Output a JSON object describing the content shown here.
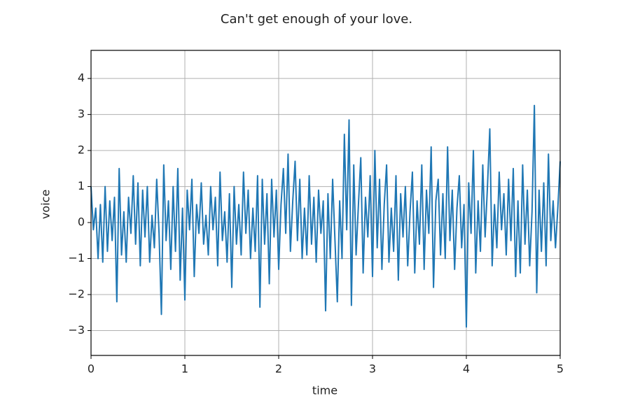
{
  "chart_data": {
    "type": "line",
    "title": "Can't get enough of your love.",
    "x_label": "time",
    "y_label": "voice",
    "xlim": [
      0,
      5
    ],
    "ylim": [
      -3.69,
      4.78
    ],
    "grid": true,
    "xticks": [
      0,
      1,
      2,
      3,
      4,
      5
    ],
    "yticks": [
      {
        "value": -3,
        "label": "−3"
      },
      {
        "value": -2,
        "label": "−2"
      },
      {
        "value": -1,
        "label": "−1"
      },
      0,
      1,
      2,
      3,
      4
    ],
    "x": [
      0,
      0.025,
      0.05,
      0.075,
      0.1,
      0.125,
      0.15,
      0.175,
      0.2,
      0.225,
      0.25,
      0.275,
      0.3,
      0.325,
      0.35,
      0.375,
      0.4,
      0.425,
      0.45,
      0.475,
      0.5,
      0.525,
      0.55,
      0.575,
      0.6,
      0.625,
      0.65,
      0.675,
      0.7,
      0.725,
      0.75,
      0.775,
      0.8,
      0.825,
      0.85,
      0.875,
      0.9,
      0.925,
      0.95,
      0.975,
      1,
      1.025,
      1.05,
      1.075,
      1.1,
      1.125,
      1.15,
      1.175,
      1.2,
      1.225,
      1.25,
      1.275,
      1.3,
      1.325,
      1.35,
      1.375,
      1.4,
      1.425,
      1.45,
      1.475,
      1.5,
      1.525,
      1.55,
      1.575,
      1.6,
      1.625,
      1.65,
      1.675,
      1.7,
      1.725,
      1.75,
      1.775,
      1.8,
      1.825,
      1.85,
      1.875,
      1.9,
      1.925,
      1.95,
      1.975,
      2,
      2.025,
      2.05,
      2.075,
      2.1,
      2.125,
      2.15,
      2.175,
      2.2,
      2.225,
      2.25,
      2.275,
      2.3,
      2.325,
      2.35,
      2.375,
      2.4,
      2.425,
      2.45,
      2.475,
      2.5,
      2.525,
      2.55,
      2.575,
      2.6,
      2.625,
      2.65,
      2.675,
      2.7,
      2.725,
      2.75,
      2.775,
      2.8,
      2.825,
      2.85,
      2.875,
      2.9,
      2.925,
      2.95,
      2.975,
      3,
      3.025,
      3.05,
      3.075,
      3.1,
      3.125,
      3.15,
      3.175,
      3.2,
      3.225,
      3.25,
      3.275,
      3.3,
      3.325,
      3.35,
      3.375,
      3.4,
      3.425,
      3.45,
      3.475,
      3.5,
      3.525,
      3.55,
      3.575,
      3.6,
      3.625,
      3.65,
      3.675,
      3.7,
      3.725,
      3.75,
      3.775,
      3.8,
      3.825,
      3.85,
      3.875,
      3.9,
      3.925,
      3.95,
      3.975,
      4,
      4.025,
      4.05,
      4.075,
      4.1,
      4.125,
      4.15,
      4.175,
      4.2,
      4.225,
      4.25,
      4.275,
      4.3,
      4.325,
      4.35,
      4.375,
      4.4,
      4.425,
      4.45,
      4.475,
      4.5,
      4.525,
      4.55,
      4.575,
      4.6,
      4.625,
      4.65,
      4.675,
      4.7,
      4.725,
      4.75,
      4.775,
      4.8,
      4.825,
      4.85,
      4.875,
      4.9,
      4.925,
      4.95,
      4.975,
      5
    ],
    "series": [
      {
        "name": "voice",
        "color": "#1f77b4",
        "values": [
          1.0,
          -0.2,
          0.4,
          -1.0,
          0.5,
          -1.1,
          1.0,
          -0.8,
          0.6,
          -0.5,
          0.7,
          -2.2,
          1.5,
          -0.9,
          0.3,
          -1.1,
          0.7,
          -0.3,
          1.3,
          -0.6,
          1.1,
          -1.2,
          0.9,
          -0.4,
          1.0,
          -1.1,
          0.2,
          -0.7,
          1.2,
          -0.3,
          -2.55,
          1.6,
          -0.5,
          0.6,
          -1.3,
          1.0,
          -0.8,
          1.5,
          -1.6,
          0.4,
          -2.15,
          0.9,
          -0.2,
          1.2,
          -1.5,
          0.5,
          -0.3,
          1.1,
          -0.6,
          0.2,
          -0.9,
          1.0,
          -0.2,
          0.7,
          -1.2,
          1.4,
          -0.5,
          0.3,
          -1.1,
          0.8,
          -1.8,
          1.0,
          -0.6,
          0.5,
          -0.9,
          1.4,
          -0.3,
          0.9,
          -1.0,
          0.4,
          -0.8,
          1.3,
          -2.35,
          1.2,
          -0.6,
          0.8,
          -1.7,
          1.2,
          -0.4,
          0.9,
          -1.3,
          0.5,
          1.5,
          -0.3,
          1.9,
          -0.8,
          0.6,
          1.7,
          -0.5,
          1.2,
          -1.0,
          0.4,
          -0.9,
          1.3,
          -0.6,
          0.7,
          -1.1,
          0.9,
          -0.3,
          0.6,
          -2.45,
          0.8,
          -1.0,
          1.2,
          -0.5,
          -2.2,
          0.6,
          -1.0,
          2.45,
          -0.2,
          2.85,
          -2.3,
          1.6,
          -0.9,
          0.5,
          1.8,
          -1.4,
          0.7,
          -0.4,
          1.3,
          -1.5,
          2.0,
          -0.7,
          1.2,
          -1.3,
          0.5,
          1.6,
          -1.1,
          0.4,
          -0.8,
          1.3,
          -1.6,
          0.8,
          -0.4,
          1.0,
          -1.2,
          0.3,
          1.4,
          -1.4,
          0.6,
          -0.6,
          1.6,
          -1.3,
          0.9,
          -0.3,
          2.1,
          -1.8,
          0.6,
          1.2,
          -0.9,
          0.8,
          -1.0,
          2.1,
          -0.5,
          0.9,
          -1.3,
          0.4,
          1.3,
          -0.7,
          0.5,
          -2.9,
          1.1,
          -0.3,
          2.0,
          -1.4,
          0.6,
          -0.8,
          1.6,
          -0.4,
          1.0,
          2.6,
          -1.2,
          0.5,
          -0.7,
          1.4,
          -0.2,
          0.8,
          -0.9,
          1.2,
          -0.5,
          1.5,
          -1.5,
          0.6,
          -1.4,
          1.6,
          -0.6,
          0.9,
          -1.2,
          0.3,
          3.25,
          -1.95,
          0.9,
          -0.8,
          1.1,
          -1.2,
          1.9,
          -0.5,
          0.6,
          -0.7,
          0.4,
          1.7
        ]
      }
    ]
  }
}
